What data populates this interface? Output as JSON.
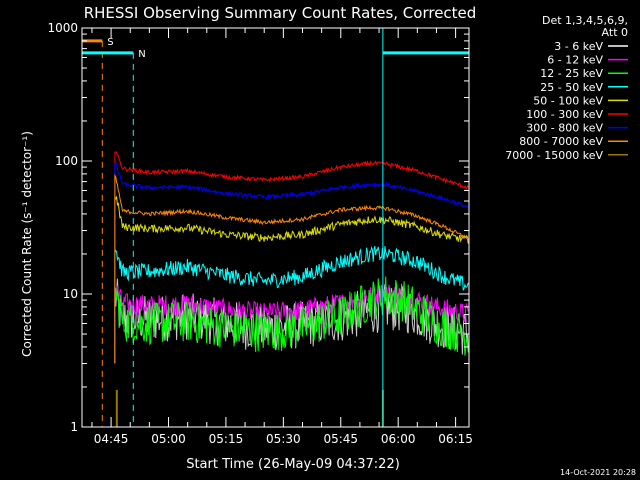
{
  "chart_data": {
    "type": "line",
    "title": "RHESSI Observing Summary Count Rates, Corrected",
    "xlabel": "Start Time (26-May-09 04:37:22)",
    "ylabel": "Corrected Count Rate (s⁻¹ detector⁻¹)",
    "y_scale": "log",
    "ylim": [
      1,
      1000
    ],
    "y_tick_labels": [
      "1",
      "10",
      "100",
      "1000"
    ],
    "x_tick_labels": [
      "04:45",
      "05:00",
      "05:15",
      "05:30",
      "05:45",
      "06:00",
      "06:15"
    ],
    "x_ticks_minutes": [
      0,
      15,
      30,
      45,
      60,
      75,
      90
    ],
    "x_range_minutes": [
      -7.6,
      93.5
    ],
    "legend": {
      "position": "right",
      "header": [
        "Det 1,3,4,5,6,9,",
        "Att 0"
      ],
      "entries": [
        {
          "label": "3 - 6 keV",
          "color": "#ffffff"
        },
        {
          "label": "6 - 12 keV",
          "color": "#ff00ff"
        },
        {
          "label": "12 - 25 keV",
          "color": "#00ff00"
        },
        {
          "label": "25 - 50 keV",
          "color": "#00ffff"
        },
        {
          "label": "50 - 100 keV",
          "color": "#dddd00"
        },
        {
          "label": "100 - 300 keV",
          "color": "#ff0000"
        },
        {
          "label": "300 - 800 keV",
          "color": "#0000ff"
        },
        {
          "label": "800 - 7000 keV",
          "color": "#ff8800"
        },
        {
          "label": "7000 - 15000 keV",
          "color": "#997700"
        }
      ]
    },
    "flags": [
      {
        "label": "S",
        "color": "#ff8800",
        "start_minute": -7.6,
        "end_minute": -2.3,
        "marker_minute": -2.3,
        "level": 800
      },
      {
        "label": "N",
        "color": "#00ffff",
        "start_minute": -7.6,
        "end_minute": 5.8,
        "marker_minute": 5.8,
        "level": 650
      },
      {
        "label": "",
        "color": "#00ffff",
        "start_minute": 71.0,
        "end_minute": 93.5,
        "marker_minute": 93.5,
        "level": 650
      }
    ],
    "data_start_minute": 1.0,
    "data_end_minute": 93.3,
    "night_start_minute": 71.0,
    "series": [
      {
        "name": "3 - 6 keV",
        "color": "#cccccc",
        "noise": 0.18,
        "points": [
          [
            1.2,
            9.5
          ],
          [
            3,
            6.5
          ],
          [
            10,
            6.5
          ],
          [
            20,
            6.8
          ],
          [
            30,
            6.0
          ],
          [
            40,
            5.5
          ],
          [
            50,
            5.8
          ],
          [
            60,
            6.5
          ],
          [
            68,
            7.5
          ],
          [
            72,
            8.0
          ],
          [
            78,
            7.5
          ],
          [
            85,
            6.0
          ],
          [
            93.3,
            5.0
          ]
        ]
      },
      {
        "name": "6 - 12 keV",
        "color": "#ff00ff",
        "noise": 0.08,
        "points": [
          [
            1.2,
            11
          ],
          [
            3,
            8.5
          ],
          [
            10,
            8.2
          ],
          [
            20,
            8.4
          ],
          [
            30,
            7.6
          ],
          [
            40,
            7.2
          ],
          [
            50,
            7.6
          ],
          [
            60,
            8.5
          ],
          [
            68,
            9.8
          ],
          [
            72,
            10.2
          ],
          [
            78,
            9.5
          ],
          [
            85,
            8.0
          ],
          [
            93.3,
            7.0
          ]
        ]
      },
      {
        "name": "12 - 25 keV",
        "color": "#00ff00",
        "noise": 0.16,
        "points": [
          [
            1.2,
            10
          ],
          [
            3,
            6.2
          ],
          [
            10,
            6.0
          ],
          [
            20,
            6.2
          ],
          [
            30,
            5.6
          ],
          [
            40,
            5.2
          ],
          [
            50,
            5.6
          ],
          [
            60,
            6.8
          ],
          [
            68,
            9.0
          ],
          [
            72,
            10.0
          ],
          [
            78,
            8.5
          ],
          [
            85,
            6.0
          ],
          [
            93.3,
            4.8
          ]
        ]
      },
      {
        "name": "25 - 50 keV",
        "color": "#00ffff",
        "noise": 0.06,
        "points": [
          [
            1.2,
            22
          ],
          [
            3,
            14.5
          ],
          [
            10,
            14.8
          ],
          [
            20,
            16.0
          ],
          [
            30,
            13.8
          ],
          [
            40,
            12.5
          ],
          [
            50,
            13.5
          ],
          [
            60,
            17.5
          ],
          [
            68,
            20.0
          ],
          [
            72,
            20.0
          ],
          [
            80,
            17.5
          ],
          [
            87,
            13.5
          ],
          [
            93.3,
            11.5
          ]
        ]
      },
      {
        "name": "50 - 100 keV",
        "color": "#dddd00",
        "noise": 0.03,
        "points": [
          [
            1.2,
            55
          ],
          [
            3,
            32
          ],
          [
            10,
            31
          ],
          [
            20,
            31.5
          ],
          [
            30,
            28.0
          ],
          [
            40,
            26.5
          ],
          [
            50,
            28.0
          ],
          [
            60,
            33.5
          ],
          [
            68,
            36.5
          ],
          [
            72,
            36.0
          ],
          [
            80,
            32.0
          ],
          [
            87,
            27.5
          ],
          [
            93.3,
            25.5
          ]
        ]
      },
      {
        "name": "100 - 300 keV",
        "color": "#ff0000",
        "noise": 0.015,
        "points": [
          [
            1.2,
            120
          ],
          [
            3,
            88
          ],
          [
            10,
            82
          ],
          [
            20,
            84.0
          ],
          [
            30,
            76.0
          ],
          [
            40,
            72.0
          ],
          [
            50,
            76.0
          ],
          [
            60,
            90.0
          ],
          [
            68,
            96.0
          ],
          [
            72,
            95.0
          ],
          [
            80,
            84.0
          ],
          [
            87,
            72.0
          ],
          [
            93.3,
            63.0
          ]
        ]
      },
      {
        "name": "300 - 800 keV",
        "color": "#0000ff",
        "noise": 0.015,
        "points": [
          [
            1.2,
            95
          ],
          [
            3,
            67
          ],
          [
            10,
            63
          ],
          [
            20,
            64.0
          ],
          [
            30,
            57.0
          ],
          [
            40,
            53.5
          ],
          [
            50,
            56.0
          ],
          [
            60,
            63.5
          ],
          [
            68,
            66.5
          ],
          [
            72,
            66.0
          ],
          [
            80,
            59.0
          ],
          [
            87,
            52.0
          ],
          [
            93.3,
            45.0
          ]
        ]
      },
      {
        "name": "800 - 7000 keV",
        "color": "#ff8800",
        "noise": 0.015,
        "points": [
          [
            1.2,
            75
          ],
          [
            3,
            42
          ],
          [
            10,
            40
          ],
          [
            20,
            42.0
          ],
          [
            30,
            37.5
          ],
          [
            40,
            34.5
          ],
          [
            50,
            36.5
          ],
          [
            60,
            43.0
          ],
          [
            68,
            44.5
          ],
          [
            72,
            44.0
          ],
          [
            80,
            38.5
          ],
          [
            87,
            32.0
          ],
          [
            93.3,
            26.0
          ]
        ]
      }
    ],
    "spikes": [
      {
        "name": "7000 - 15000 keV",
        "color": "#997700",
        "minute": 1.5,
        "value": 1.9
      },
      {
        "name": "7000 - 15000 keV",
        "color": "#997700",
        "minute": 71.0,
        "value": 1.9
      }
    ]
  },
  "footer": {
    "date_stamp": "14-Oct-2021 20:28"
  }
}
